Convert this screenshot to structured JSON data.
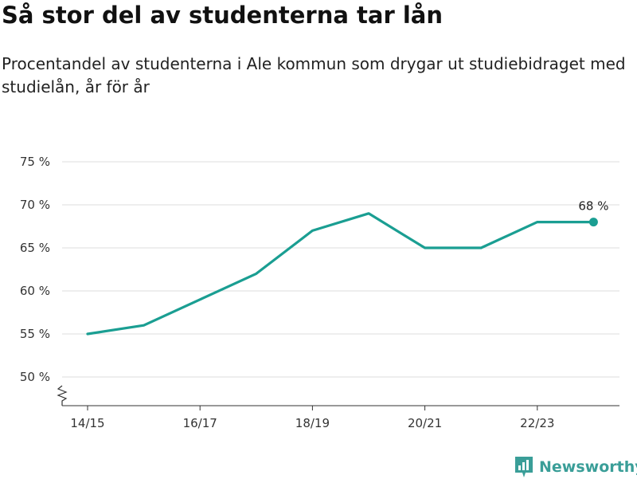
{
  "title": "Så stor del av studenterna tar lån",
  "subtitle": "Procentandel av studenterna i Ale kommun som drygar ut studiebidraget med studielån, år för år",
  "brand": {
    "name": "Newsworthy",
    "color": "#3a9e98",
    "icon": "bar-chart-icon"
  },
  "colors": {
    "line": "#1a9e92",
    "grid": "#dddddd",
    "axis": "#333333"
  },
  "chart_data": {
    "type": "line",
    "x": [
      "14/15",
      "15/16",
      "16/17",
      "17/18",
      "18/19",
      "19/20",
      "20/21",
      "21/22",
      "22/23",
      "23/24"
    ],
    "y": [
      55,
      56,
      59,
      62,
      67,
      69,
      65,
      65,
      68,
      68
    ],
    "x_tick_labels": [
      "14/15",
      "16/17",
      "18/19",
      "20/21",
      "22/23"
    ],
    "y_ticks": [
      50,
      55,
      60,
      65,
      70,
      75
    ],
    "y_tick_labels": [
      "50 %",
      "55 %",
      "60 %",
      "65 %",
      "70 %",
      "75 %"
    ],
    "ylim": [
      50,
      75
    ],
    "y_axis_break": true,
    "grid": "horizontal",
    "last_point_label": "68 %",
    "xlabel": "",
    "ylabel": ""
  }
}
